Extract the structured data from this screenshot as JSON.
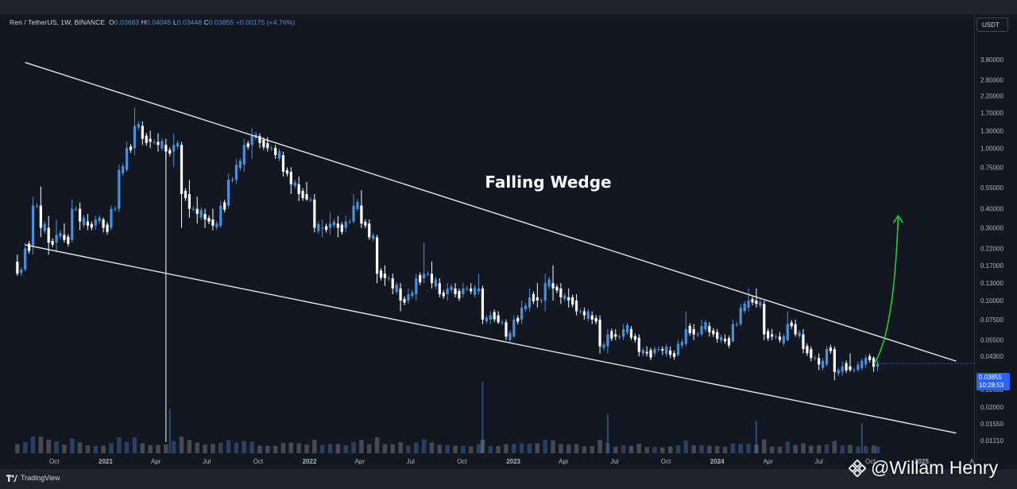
{
  "legend": {
    "symbol": "Ren / TetherUS, 1W, BINANCE",
    "open_label": "O",
    "open": "0.03683",
    "high_label": "H",
    "high": "0.04045",
    "low_label": "L",
    "low": "0.03448",
    "close_label": "C",
    "close": "0.03855",
    "change": "+0.00175 (+4.76%)"
  },
  "currency": "USDT",
  "last_price": "0.03855",
  "countdown": "10:28:53",
  "branding": "TradingView",
  "watermark": "@Willam Henry",
  "colors": {
    "background": "#131722",
    "up": "#4a90d9",
    "down": "#ffffff",
    "trendline": "#e8e8e8",
    "arrow": "#22cc33",
    "price_tag": "#2962ff"
  },
  "chart_data": {
    "type": "candlestick",
    "scale": "log",
    "annotation": "Falling Wedge",
    "y_ticks": [
      "3.80000",
      "2.80000",
      "2.20000",
      "1.70000",
      "1.30000",
      "1.00000",
      "0.75000",
      "0.55000",
      "0.40000",
      "0.30000",
      "0.22000",
      "0.17000",
      "0.13000",
      "0.10000",
      "0.07500",
      "0.05500",
      "0.04300",
      "0.02600",
      "0.02000",
      "0.01550",
      "0.01210"
    ],
    "x_ticks": [
      "Oct",
      "2021",
      "Apr",
      "Jul",
      "Oct",
      "2022",
      "Apr",
      "Jul",
      "Oct",
      "2023",
      "Apr",
      "Jul",
      "Oct",
      "2024",
      "Apr",
      "Jul",
      "Oct",
      "2025",
      "A"
    ],
    "ylim": [
      0.0115,
      4.4
    ],
    "upper_trendline": [
      {
        "date": "2020-08-10",
        "price": 3.65
      },
      {
        "date": "2024-12-20",
        "price": 0.04
      }
    ],
    "lower_trendline": [
      {
        "date": "2020-08-10",
        "price": 0.232
      },
      {
        "date": "2024-12-20",
        "price": 0.0135
      }
    ],
    "projection_arrow": {
      "from": {
        "date": "2024-10-08",
        "price": 0.0385
      },
      "to": {
        "date": "2024-11-20",
        "price": 0.36
      }
    },
    "ohlc": [
      {
        "date": "2020-07-27",
        "o": 0.18,
        "h": 0.2,
        "l": 0.145,
        "c": 0.15
      },
      {
        "date": "2020-08-10",
        "o": 0.16,
        "h": 0.24,
        "l": 0.155,
        "c": 0.22
      },
      {
        "date": "2020-08-24",
        "o": 0.23,
        "h": 0.48,
        "l": 0.2,
        "c": 0.42
      },
      {
        "date": "2020-09-07",
        "o": 0.42,
        "h": 0.56,
        "l": 0.26,
        "c": 0.3
      },
      {
        "date": "2020-09-21",
        "o": 0.3,
        "h": 0.36,
        "l": 0.2,
        "c": 0.24
      },
      {
        "date": "2020-10-05",
        "o": 0.24,
        "h": 0.34,
        "l": 0.21,
        "c": 0.27
      },
      {
        "date": "2020-10-19",
        "o": 0.27,
        "h": 0.32,
        "l": 0.24,
        "c": 0.25
      },
      {
        "date": "2020-11-02",
        "o": 0.25,
        "h": 0.46,
        "l": 0.24,
        "c": 0.4
      },
      {
        "date": "2020-11-16",
        "o": 0.4,
        "h": 0.44,
        "l": 0.29,
        "c": 0.33
      },
      {
        "date": "2020-11-30",
        "o": 0.33,
        "h": 0.37,
        "l": 0.29,
        "c": 0.31
      },
      {
        "date": "2020-12-14",
        "o": 0.31,
        "h": 0.36,
        "l": 0.29,
        "c": 0.34
      },
      {
        "date": "2020-12-28",
        "o": 0.34,
        "h": 0.35,
        "l": 0.28,
        "c": 0.3
      },
      {
        "date": "2021-01-11",
        "o": 0.3,
        "h": 0.42,
        "l": 0.29,
        "c": 0.4
      },
      {
        "date": "2021-01-25",
        "o": 0.4,
        "h": 0.78,
        "l": 0.38,
        "c": 0.72
      },
      {
        "date": "2021-02-08",
        "o": 0.72,
        "h": 1.1,
        "l": 0.7,
        "c": 1.0
      },
      {
        "date": "2021-02-22",
        "o": 1.0,
        "h": 1.85,
        "l": 0.9,
        "c": 1.4
      },
      {
        "date": "2021-03-08",
        "o": 1.4,
        "h": 1.5,
        "l": 1.05,
        "c": 1.15
      },
      {
        "date": "2021-03-22",
        "o": 1.15,
        "h": 1.3,
        "l": 1.0,
        "c": 1.1
      },
      {
        "date": "2021-04-05",
        "o": 1.1,
        "h": 1.25,
        "l": 0.95,
        "c": 1.05
      },
      {
        "date": "2021-04-19",
        "o": 1.05,
        "h": 1.15,
        "l": 0.85,
        "c": 0.95
      },
      {
        "date": "2021-05-03",
        "o": 0.95,
        "h": 1.25,
        "l": 0.75,
        "c": 1.05
      },
      {
        "date": "2021-05-17",
        "o": 1.05,
        "h": 1.1,
        "l": 0.3,
        "c": 0.5
      },
      {
        "date": "2021-05-31",
        "o": 0.5,
        "h": 0.62,
        "l": 0.35,
        "c": 0.4
      },
      {
        "date": "2021-06-14",
        "o": 0.4,
        "h": 0.48,
        "l": 0.32,
        "c": 0.37
      },
      {
        "date": "2021-06-28",
        "o": 0.37,
        "h": 0.4,
        "l": 0.3,
        "c": 0.34
      },
      {
        "date": "2021-07-12",
        "o": 0.34,
        "h": 0.4,
        "l": 0.29,
        "c": 0.31
      },
      {
        "date": "2021-07-26",
        "o": 0.31,
        "h": 0.45,
        "l": 0.3,
        "c": 0.42
      },
      {
        "date": "2021-08-09",
        "o": 0.42,
        "h": 0.68,
        "l": 0.4,
        "c": 0.62
      },
      {
        "date": "2021-08-23",
        "o": 0.62,
        "h": 0.85,
        "l": 0.58,
        "c": 0.78
      },
      {
        "date": "2021-09-06",
        "o": 0.78,
        "h": 1.15,
        "l": 0.7,
        "c": 1.05
      },
      {
        "date": "2021-09-20",
        "o": 1.05,
        "h": 1.35,
        "l": 0.85,
        "c": 1.2
      },
      {
        "date": "2021-10-04",
        "o": 1.2,
        "h": 1.25,
        "l": 1.0,
        "c": 1.08
      },
      {
        "date": "2021-10-18",
        "o": 1.08,
        "h": 1.18,
        "l": 0.95,
        "c": 1.0
      },
      {
        "date": "2021-11-01",
        "o": 1.0,
        "h": 1.05,
        "l": 0.85,
        "c": 0.9
      },
      {
        "date": "2021-11-15",
        "o": 0.9,
        "h": 0.95,
        "l": 0.65,
        "c": 0.7
      },
      {
        "date": "2021-11-29",
        "o": 0.7,
        "h": 0.75,
        "l": 0.5,
        "c": 0.58
      },
      {
        "date": "2021-12-13",
        "o": 0.58,
        "h": 0.65,
        "l": 0.45,
        "c": 0.5
      },
      {
        "date": "2021-12-27",
        "o": 0.5,
        "h": 0.6,
        "l": 0.45,
        "c": 0.46
      },
      {
        "date": "2022-01-10",
        "o": 0.46,
        "h": 0.5,
        "l": 0.28,
        "c": 0.3
      },
      {
        "date": "2022-01-24",
        "o": 0.3,
        "h": 0.34,
        "l": 0.26,
        "c": 0.3
      },
      {
        "date": "2022-02-07",
        "o": 0.3,
        "h": 0.38,
        "l": 0.27,
        "c": 0.32
      },
      {
        "date": "2022-02-21",
        "o": 0.32,
        "h": 0.36,
        "l": 0.26,
        "c": 0.3
      },
      {
        "date": "2022-03-07",
        "o": 0.3,
        "h": 0.36,
        "l": 0.28,
        "c": 0.33
      },
      {
        "date": "2022-03-21",
        "o": 0.33,
        "h": 0.5,
        "l": 0.32,
        "c": 0.42
      },
      {
        "date": "2022-04-04",
        "o": 0.42,
        "h": 0.53,
        "l": 0.3,
        "c": 0.32
      },
      {
        "date": "2022-04-18",
        "o": 0.32,
        "h": 0.34,
        "l": 0.25,
        "c": 0.26
      },
      {
        "date": "2022-05-02",
        "o": 0.26,
        "h": 0.27,
        "l": 0.13,
        "c": 0.15
      },
      {
        "date": "2022-05-16",
        "o": 0.15,
        "h": 0.17,
        "l": 0.125,
        "c": 0.14
      },
      {
        "date": "2022-05-30",
        "o": 0.14,
        "h": 0.15,
        "l": 0.11,
        "c": 0.12
      },
      {
        "date": "2022-06-13",
        "o": 0.12,
        "h": 0.13,
        "l": 0.085,
        "c": 0.1
      },
      {
        "date": "2022-06-27",
        "o": 0.1,
        "h": 0.12,
        "l": 0.095,
        "c": 0.11
      },
      {
        "date": "2022-07-11",
        "o": 0.11,
        "h": 0.15,
        "l": 0.1,
        "c": 0.14
      },
      {
        "date": "2022-07-25",
        "o": 0.14,
        "h": 0.24,
        "l": 0.13,
        "c": 0.15
      },
      {
        "date": "2022-08-08",
        "o": 0.15,
        "h": 0.18,
        "l": 0.12,
        "c": 0.13
      },
      {
        "date": "2022-08-22",
        "o": 0.13,
        "h": 0.14,
        "l": 0.105,
        "c": 0.11
      },
      {
        "date": "2022-09-05",
        "o": 0.11,
        "h": 0.13,
        "l": 0.1,
        "c": 0.12
      },
      {
        "date": "2022-09-19",
        "o": 0.12,
        "h": 0.13,
        "l": 0.105,
        "c": 0.11
      },
      {
        "date": "2022-10-03",
        "o": 0.11,
        "h": 0.13,
        "l": 0.105,
        "c": 0.12
      },
      {
        "date": "2022-10-17",
        "o": 0.12,
        "h": 0.13,
        "l": 0.11,
        "c": 0.115
      },
      {
        "date": "2022-10-31",
        "o": 0.115,
        "h": 0.15,
        "l": 0.11,
        "c": 0.12
      },
      {
        "date": "2022-11-07",
        "o": 0.12,
        "h": 0.125,
        "l": 0.07,
        "c": 0.075
      },
      {
        "date": "2022-11-21",
        "o": 0.075,
        "h": 0.085,
        "l": 0.07,
        "c": 0.08
      },
      {
        "date": "2022-12-05",
        "o": 0.08,
        "h": 0.085,
        "l": 0.07,
        "c": 0.072
      },
      {
        "date": "2022-12-19",
        "o": 0.072,
        "h": 0.075,
        "l": 0.055,
        "c": 0.058
      },
      {
        "date": "2023-01-02",
        "o": 0.058,
        "h": 0.08,
        "l": 0.057,
        "c": 0.075
      },
      {
        "date": "2023-01-16",
        "o": 0.075,
        "h": 0.1,
        "l": 0.07,
        "c": 0.09
      },
      {
        "date": "2023-01-30",
        "o": 0.09,
        "h": 0.12,
        "l": 0.085,
        "c": 0.105
      },
      {
        "date": "2023-02-13",
        "o": 0.105,
        "h": 0.13,
        "l": 0.09,
        "c": 0.1
      },
      {
        "date": "2023-02-27",
        "o": 0.1,
        "h": 0.15,
        "l": 0.085,
        "c": 0.13
      },
      {
        "date": "2023-03-13",
        "o": 0.13,
        "h": 0.17,
        "l": 0.1,
        "c": 0.12
      },
      {
        "date": "2023-03-27",
        "o": 0.12,
        "h": 0.13,
        "l": 0.095,
        "c": 0.105
      },
      {
        "date": "2023-04-10",
        "o": 0.105,
        "h": 0.12,
        "l": 0.09,
        "c": 0.1
      },
      {
        "date": "2023-04-24",
        "o": 0.1,
        "h": 0.11,
        "l": 0.08,
        "c": 0.085
      },
      {
        "date": "2023-05-08",
        "o": 0.085,
        "h": 0.09,
        "l": 0.075,
        "c": 0.08
      },
      {
        "date": "2023-05-22",
        "o": 0.08,
        "h": 0.085,
        "l": 0.07,
        "c": 0.075
      },
      {
        "date": "2023-06-05",
        "o": 0.075,
        "h": 0.08,
        "l": 0.045,
        "c": 0.05
      },
      {
        "date": "2023-06-19",
        "o": 0.05,
        "h": 0.065,
        "l": 0.045,
        "c": 0.06
      },
      {
        "date": "2023-07-03",
        "o": 0.06,
        "h": 0.065,
        "l": 0.055,
        "c": 0.058
      },
      {
        "date": "2023-07-17",
        "o": 0.058,
        "h": 0.07,
        "l": 0.055,
        "c": 0.065
      },
      {
        "date": "2023-07-31",
        "o": 0.065,
        "h": 0.068,
        "l": 0.055,
        "c": 0.057
      },
      {
        "date": "2023-08-14",
        "o": 0.057,
        "h": 0.06,
        "l": 0.043,
        "c": 0.046
      },
      {
        "date": "2023-08-28",
        "o": 0.046,
        "h": 0.05,
        "l": 0.043,
        "c": 0.045
      },
      {
        "date": "2023-09-11",
        "o": 0.045,
        "h": 0.05,
        "l": 0.043,
        "c": 0.048
      },
      {
        "date": "2023-09-25",
        "o": 0.048,
        "h": 0.05,
        "l": 0.044,
        "c": 0.047
      },
      {
        "date": "2023-10-09",
        "o": 0.047,
        "h": 0.05,
        "l": 0.042,
        "c": 0.044
      },
      {
        "date": "2023-10-23",
        "o": 0.044,
        "h": 0.055,
        "l": 0.043,
        "c": 0.052
      },
      {
        "date": "2023-11-06",
        "o": 0.052,
        "h": 0.085,
        "l": 0.05,
        "c": 0.065
      },
      {
        "date": "2023-11-20",
        "o": 0.065,
        "h": 0.07,
        "l": 0.055,
        "c": 0.06
      },
      {
        "date": "2023-12-04",
        "o": 0.06,
        "h": 0.075,
        "l": 0.058,
        "c": 0.068
      },
      {
        "date": "2023-12-18",
        "o": 0.068,
        "h": 0.072,
        "l": 0.058,
        "c": 0.062
      },
      {
        "date": "2024-01-01",
        "o": 0.062,
        "h": 0.065,
        "l": 0.053,
        "c": 0.056
      },
      {
        "date": "2024-01-15",
        "o": 0.056,
        "h": 0.06,
        "l": 0.052,
        "c": 0.054
      },
      {
        "date": "2024-01-29",
        "o": 0.054,
        "h": 0.075,
        "l": 0.053,
        "c": 0.07
      },
      {
        "date": "2024-02-12",
        "o": 0.07,
        "h": 0.095,
        "l": 0.068,
        "c": 0.09
      },
      {
        "date": "2024-02-26",
        "o": 0.09,
        "h": 0.12,
        "l": 0.085,
        "c": 0.1
      },
      {
        "date": "2024-03-11",
        "o": 0.1,
        "h": 0.12,
        "l": 0.09,
        "c": 0.095
      },
      {
        "date": "2024-03-25",
        "o": 0.095,
        "h": 0.1,
        "l": 0.055,
        "c": 0.06
      },
      {
        "date": "2024-04-08",
        "o": 0.06,
        "h": 0.065,
        "l": 0.055,
        "c": 0.058
      },
      {
        "date": "2024-04-22",
        "o": 0.058,
        "h": 0.062,
        "l": 0.053,
        "c": 0.055
      },
      {
        "date": "2024-05-06",
        "o": 0.055,
        "h": 0.085,
        "l": 0.054,
        "c": 0.07
      },
      {
        "date": "2024-05-20",
        "o": 0.07,
        "h": 0.075,
        "l": 0.058,
        "c": 0.06
      },
      {
        "date": "2024-06-03",
        "o": 0.06,
        "h": 0.065,
        "l": 0.045,
        "c": 0.048
      },
      {
        "date": "2024-06-17",
        "o": 0.048,
        "h": 0.05,
        "l": 0.04,
        "c": 0.042
      },
      {
        "date": "2024-07-01",
        "o": 0.042,
        "h": 0.045,
        "l": 0.035,
        "c": 0.038
      },
      {
        "date": "2024-07-15",
        "o": 0.038,
        "h": 0.05,
        "l": 0.037,
        "c": 0.048
      },
      {
        "date": "2024-07-29",
        "o": 0.048,
        "h": 0.05,
        "l": 0.03,
        "c": 0.034
      },
      {
        "date": "2024-08-12",
        "o": 0.034,
        "h": 0.04,
        "l": 0.032,
        "c": 0.037
      },
      {
        "date": "2024-08-26",
        "o": 0.037,
        "h": 0.045,
        "l": 0.034,
        "c": 0.035
      },
      {
        "date": "2024-09-09",
        "o": 0.035,
        "h": 0.04,
        "l": 0.034,
        "c": 0.038
      },
      {
        "date": "2024-09-23",
        "o": 0.038,
        "h": 0.044,
        "l": 0.036,
        "c": 0.042
      },
      {
        "date": "2024-10-07",
        "o": 0.042,
        "h": 0.043,
        "l": 0.034,
        "c": 0.0368
      },
      {
        "date": "2024-10-14",
        "o": 0.03683,
        "h": 0.04045,
        "l": 0.03448,
        "c": 0.03855
      }
    ],
    "volume_spikes": [
      {
        "date": "2021-04-26",
        "level": 0.62
      },
      {
        "date": "2022-11-07",
        "level": 1.0
      },
      {
        "date": "2023-06-19",
        "level": 0.55
      },
      {
        "date": "2024-03-11",
        "level": 0.45
      },
      {
        "date": "2024-09-16",
        "level": 0.42
      }
    ]
  }
}
